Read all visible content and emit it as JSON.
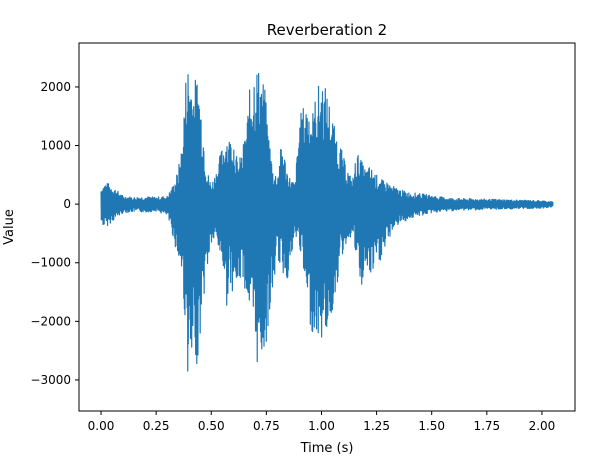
{
  "chart_data": {
    "type": "line",
    "title": "Reverberation 2",
    "xlabel": "Time (s)",
    "ylabel": "Value",
    "xlim": [
      -0.1,
      2.15
    ],
    "ylim": [
      -3530,
      2750
    ],
    "grid": false,
    "line_color": "#1f77b4",
    "x_ticks": [
      {
        "value": 0.0,
        "label": "0.00"
      },
      {
        "value": 0.25,
        "label": "0.25"
      },
      {
        "value": 0.5,
        "label": "0.50"
      },
      {
        "value": 0.75,
        "label": "0.75"
      },
      {
        "value": 1.0,
        "label": "1.00"
      },
      {
        "value": 1.25,
        "label": "1.25"
      },
      {
        "value": 1.5,
        "label": "1.50"
      },
      {
        "value": 1.75,
        "label": "1.75"
      },
      {
        "value": 2.0,
        "label": "2.00"
      }
    ],
    "y_ticks": [
      {
        "value": -3000,
        "label": "−3000"
      },
      {
        "value": -2000,
        "label": "−2000"
      },
      {
        "value": -1000,
        "label": "−1000"
      },
      {
        "value": 0,
        "label": "0"
      },
      {
        "value": 1000,
        "label": "1000"
      },
      {
        "value": 2000,
        "label": "2000"
      }
    ],
    "series": [
      {
        "x": [
          0.0,
          0.02,
          0.05,
          0.1,
          0.15,
          0.2,
          0.25,
          0.3,
          0.33,
          0.35,
          0.37,
          0.38,
          0.39,
          0.4,
          0.42,
          0.44,
          0.46,
          0.48,
          0.5,
          0.52,
          0.55,
          0.57,
          0.58,
          0.6,
          0.62,
          0.64,
          0.66,
          0.68,
          0.7,
          0.72,
          0.74,
          0.76,
          0.78,
          0.8,
          0.82,
          0.85,
          0.88,
          0.9,
          0.92,
          0.94,
          0.96,
          0.98,
          1.0,
          1.02,
          1.04,
          1.06,
          1.08,
          1.1,
          1.12,
          1.14,
          1.16,
          1.18,
          1.2,
          1.22,
          1.25,
          1.28,
          1.3,
          1.32,
          1.35,
          1.4,
          1.45,
          1.5,
          1.55,
          1.6,
          1.7,
          1.8,
          1.9,
          2.0,
          2.05
        ],
        "y_max": [
          300,
          380,
          320,
          140,
          120,
          130,
          120,
          140,
          350,
          600,
          1100,
          2000,
          2450,
          2470,
          2100,
          2250,
          1500,
          600,
          350,
          550,
          1000,
          1250,
          1150,
          1230,
          700,
          900,
          1400,
          2200,
          2480,
          2300,
          2100,
          1250,
          600,
          500,
          1100,
          500,
          350,
          1500,
          1700,
          1800,
          1600,
          2000,
          2150,
          2000,
          1700,
          1300,
          1100,
          800,
          600,
          400,
          900,
          750,
          600,
          650,
          500,
          400,
          380,
          320,
          260,
          200,
          180,
          150,
          120,
          100,
          90,
          80,
          70,
          60,
          40
        ],
        "y_min": [
          -350,
          -400,
          -300,
          -150,
          -130,
          -140,
          -120,
          -200,
          -600,
          -1000,
          -1300,
          -2000,
          -2700,
          -3250,
          -2800,
          -2700,
          -1800,
          -1200,
          -700,
          -650,
          -1000,
          -1750,
          -1400,
          -1500,
          -1500,
          -1200,
          -1600,
          -2000,
          -2800,
          -2700,
          -2600,
          -2100,
          -1500,
          -900,
          -1200,
          -1300,
          -600,
          -700,
          -1300,
          -2000,
          -2200,
          -2300,
          -2350,
          -2200,
          -2100,
          -1600,
          -1200,
          -800,
          -600,
          -550,
          -1000,
          -1500,
          -1100,
          -1300,
          -1100,
          -900,
          -700,
          -450,
          -350,
          -250,
          -200,
          -150,
          -130,
          -110,
          -100,
          -90,
          -80,
          -70,
          -50
        ]
      }
    ]
  }
}
